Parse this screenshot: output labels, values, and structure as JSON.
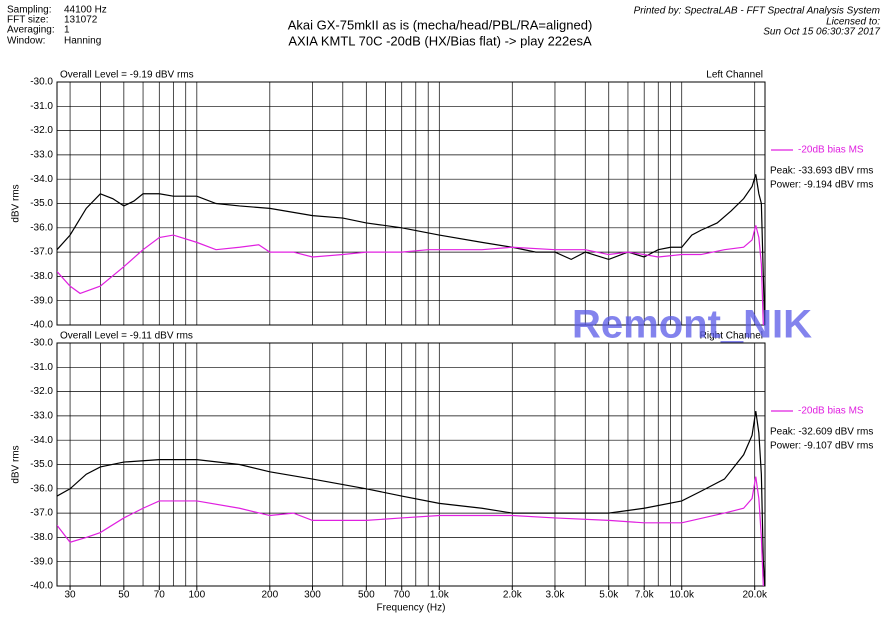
{
  "header": {
    "info": [
      [
        "Sampling:",
        "44100 Hz"
      ],
      [
        "FFT size:",
        "131072"
      ],
      [
        "Averaging:",
        "1"
      ],
      [
        "Window:",
        "Hanning"
      ]
    ],
    "title": [
      "Akai GX-75mkII as is (mecha/head/PBL/RA=aligned)",
      "AXIA KMTL 70C -20dB (HX/Bias flat) -> play 222esA"
    ],
    "printed": [
      "Printed by: SpectraLAB - FFT Spectral Analysis System",
      "Licensed to:",
      "Sun Oct 15 06:30:37 2017"
    ],
    "watermark": "Remont_NIK"
  },
  "chart_data": [
    {
      "type": "line",
      "overall_level": "Overall Level = -9.19 dBV rms",
      "channel": "Left Channel",
      "peak": "Peak: -33.693 dBV rms",
      "power": "Power: -9.194 dBV rms",
      "ylabel": "dBV rms",
      "log_x": true,
      "grid": true,
      "legend": "right",
      "xlim": [
        26.5,
        22050
      ],
      "ylim": [
        -40,
        -30
      ],
      "yticks": [
        {
          "value": -30,
          "label": "-30.0"
        },
        {
          "value": -31,
          "label": "-31.0"
        },
        {
          "value": -32,
          "label": "-32.0"
        },
        {
          "value": -33,
          "label": "-33.0"
        },
        {
          "value": -34,
          "label": "-34.0"
        },
        {
          "value": -35,
          "label": "-35.0"
        },
        {
          "value": -36,
          "label": "-36.0"
        },
        {
          "value": -37,
          "label": "-37.0"
        },
        {
          "value": -38,
          "label": "-38.0"
        },
        {
          "value": -39,
          "label": "-39.0"
        },
        {
          "value": -40,
          "label": "-40.0"
        }
      ],
      "xgrid": [
        30,
        40,
        50,
        60,
        70,
        80,
        90,
        100,
        200,
        300,
        400,
        500,
        600,
        700,
        800,
        900,
        1000,
        2000,
        3000,
        4000,
        5000,
        6000,
        7000,
        8000,
        9000,
        10000,
        20000
      ],
      "series": [
        {
          "color": "#000000",
          "x": [
            26.5,
            30,
            35,
            40,
            45,
            50,
            55,
            60,
            70,
            80,
            100,
            120,
            150,
            200,
            300,
            400,
            500,
            700,
            1000,
            1500,
            2000,
            2500,
            3000,
            3500,
            4000,
            5000,
            6000,
            7000,
            8000,
            9000,
            10000,
            11000,
            12000,
            14000,
            16000,
            18000,
            19500,
            20200,
            20800,
            21300,
            21700,
            22000
          ],
          "values": [
            -36.9,
            -36.3,
            -35.2,
            -34.6,
            -34.8,
            -35.1,
            -34.9,
            -34.6,
            -34.6,
            -34.7,
            -34.7,
            -35.0,
            -35.1,
            -35.2,
            -35.5,
            -35.6,
            -35.8,
            -36.0,
            -36.3,
            -36.6,
            -36.8,
            -37.0,
            -37.0,
            -37.3,
            -37.0,
            -37.3,
            -37.0,
            -37.2,
            -36.9,
            -36.8,
            -36.8,
            -36.3,
            -36.1,
            -35.8,
            -35.3,
            -34.8,
            -34.3,
            -33.8,
            -34.6,
            -35.0,
            -38.0,
            -40.0
          ]
        },
        {
          "name": "-20dB bias MS",
          "color": "#e020e0",
          "x": [
            26.5,
            30,
            33,
            40,
            50,
            60,
            70,
            80,
            100,
            120,
            150,
            180,
            200,
            250,
            300,
            400,
            500,
            700,
            900,
            1000,
            1500,
            2000,
            3000,
            4000,
            5000,
            6000,
            7000,
            8000,
            10000,
            12000,
            15000,
            18000,
            19500,
            20200,
            20800,
            21300,
            21700
          ],
          "values": [
            -37.8,
            -38.4,
            -38.7,
            -38.4,
            -37.6,
            -36.9,
            -36.4,
            -36.3,
            -36.6,
            -36.9,
            -36.8,
            -36.7,
            -37.0,
            -37.0,
            -37.2,
            -37.1,
            -37.0,
            -37.0,
            -36.9,
            -36.9,
            -36.9,
            -36.8,
            -36.9,
            -36.9,
            -37.1,
            -37.0,
            -37.1,
            -37.2,
            -37.1,
            -37.1,
            -36.9,
            -36.8,
            -36.5,
            -35.9,
            -36.4,
            -37.5,
            -40.0
          ]
        }
      ]
    },
    {
      "type": "line",
      "overall_level": "Overall Level = -9.11 dBV rms",
      "channel": "Right Channel",
      "peak": "Peak: -32.609 dBV rms",
      "power": "Power: -9.107 dBV rms",
      "ylabel": "dBV rms",
      "xlabel": "Frequency (Hz)",
      "log_x": true,
      "grid": true,
      "legend": "right",
      "xlim": [
        26.5,
        22050
      ],
      "ylim": [
        -40,
        -30
      ],
      "yticks": [
        {
          "value": -30,
          "label": "-30.0"
        },
        {
          "value": -31,
          "label": "-31.0"
        },
        {
          "value": -32,
          "label": "-32.0"
        },
        {
          "value": -33,
          "label": "-33.0"
        },
        {
          "value": -34,
          "label": "-34.0"
        },
        {
          "value": -35,
          "label": "-35.0"
        },
        {
          "value": -36,
          "label": "-36.0"
        },
        {
          "value": -37,
          "label": "-37.0"
        },
        {
          "value": -38,
          "label": "-38.0"
        },
        {
          "value": -39,
          "label": "-39.0"
        },
        {
          "value": -40,
          "label": "-40.0"
        }
      ],
      "xgrid": [
        30,
        40,
        50,
        60,
        70,
        80,
        90,
        100,
        200,
        300,
        400,
        500,
        600,
        700,
        800,
        900,
        1000,
        2000,
        3000,
        4000,
        5000,
        6000,
        7000,
        8000,
        9000,
        10000,
        20000
      ],
      "xticks": [
        30,
        50,
        70,
        100,
        200,
        300,
        500,
        700,
        {
          "value": 1000,
          "label": "1.0k"
        },
        {
          "value": 2000,
          "label": "2.0k"
        },
        {
          "value": 3000,
          "label": "3.0k"
        },
        {
          "value": 5000,
          "label": "5.0k"
        },
        {
          "value": 7000,
          "label": "7.0k"
        },
        {
          "value": 10000,
          "label": "10.0k"
        },
        {
          "value": 20000,
          "label": "20.0k"
        }
      ],
      "series": [
        {
          "color": "#000000",
          "x": [
            26.5,
            30,
            35,
            40,
            50,
            70,
            100,
            150,
            200,
            300,
            500,
            700,
            1000,
            1500,
            2000,
            3000,
            5000,
            7000,
            10000,
            12000,
            15000,
            18000,
            19500,
            20200,
            20800,
            21300,
            21700,
            22000
          ],
          "values": [
            -36.3,
            -36.0,
            -35.4,
            -35.1,
            -34.9,
            -34.8,
            -34.8,
            -35.0,
            -35.3,
            -35.6,
            -36.0,
            -36.3,
            -36.6,
            -36.8,
            -37.0,
            -37.0,
            -37.0,
            -36.8,
            -36.5,
            -36.1,
            -35.6,
            -34.6,
            -33.8,
            -32.8,
            -33.7,
            -35.4,
            -39.0,
            -40.0
          ]
        },
        {
          "name": "-20dB bias MS",
          "color": "#e020e0",
          "x": [
            26.5,
            30,
            35,
            40,
            50,
            60,
            70,
            100,
            150,
            200,
            250,
            300,
            500,
            700,
            1000,
            2000,
            3000,
            5000,
            7000,
            10000,
            15000,
            18000,
            19500,
            20200,
            20800,
            21300,
            21700
          ],
          "values": [
            -37.5,
            -38.2,
            -38.0,
            -37.8,
            -37.2,
            -36.8,
            -36.5,
            -36.5,
            -36.8,
            -37.1,
            -37.0,
            -37.3,
            -37.3,
            -37.2,
            -37.1,
            -37.1,
            -37.2,
            -37.3,
            -37.4,
            -37.4,
            -37.0,
            -36.8,
            -36.4,
            -35.5,
            -36.4,
            -38.0,
            -40.0
          ]
        }
      ]
    }
  ]
}
